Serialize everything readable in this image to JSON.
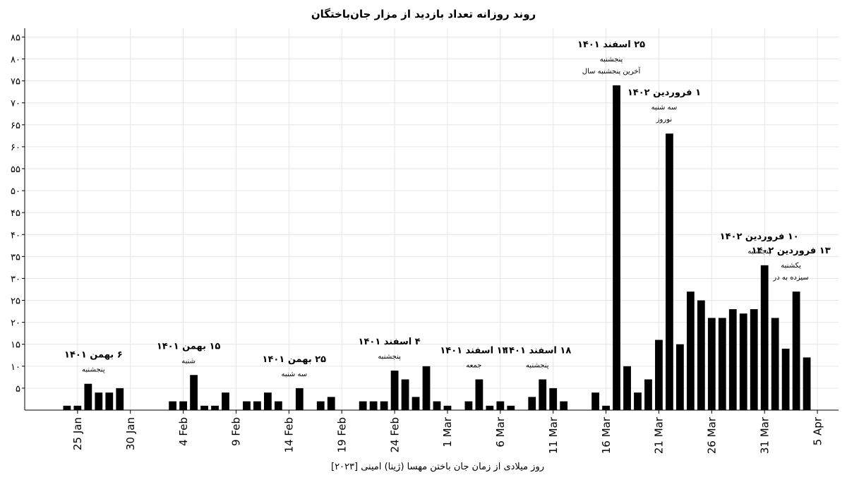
{
  "chart_data": {
    "type": "bar",
    "title": "روند روزانه تعداد بازدید از مزار جان‌باختگان",
    "xlabel": "روز میلادی از زمان جان باختن مهسا (ژینا) امینی [۲۰۲۳]",
    "ylabel": "",
    "ylim": [
      0,
      87
    ],
    "yticks": [
      5,
      10,
      15,
      20,
      25,
      30,
      35,
      40,
      45,
      50,
      55,
      60,
      65,
      70,
      75,
      80,
      85
    ],
    "ytick_labels": [
      "۵",
      "۱۰",
      "۱۵",
      "۲۰",
      "۲۵",
      "۳۰",
      "۳۵",
      "۴۰",
      "۴۵",
      "۵۰",
      "۵۵",
      "۶۰",
      "۶۵",
      "۷۰",
      "۷۵",
      "۸۰",
      "۸۵"
    ],
    "xlim": [
      "2023-01-20",
      "2023-04-07"
    ],
    "x_ticks": [
      {
        "date": "2023-01-25",
        "label": "25 Jan"
      },
      {
        "date": "2023-01-30",
        "label": "30 Jan"
      },
      {
        "date": "2023-02-04",
        "label": "4 Feb"
      },
      {
        "date": "2023-02-09",
        "label": "9 Feb"
      },
      {
        "date": "2023-02-14",
        "label": "14 Feb"
      },
      {
        "date": "2023-02-19",
        "label": "19 Feb"
      },
      {
        "date": "2023-02-24",
        "label": "24 Feb"
      },
      {
        "date": "2023-03-01",
        "label": "1 Mar"
      },
      {
        "date": "2023-03-06",
        "label": "6 Mar"
      },
      {
        "date": "2023-03-11",
        "label": "11 Mar"
      },
      {
        "date": "2023-03-16",
        "label": "16 Mar"
      },
      {
        "date": "2023-03-21",
        "label": "21 Mar"
      },
      {
        "date": "2023-03-26",
        "label": "26 Mar"
      },
      {
        "date": "2023-03-31",
        "label": "31 Mar"
      },
      {
        "date": "2023-04-05",
        "label": "5 Apr"
      }
    ],
    "bars": [
      {
        "x": "2023-01-24",
        "y": 1
      },
      {
        "x": "2023-01-25",
        "y": 1
      },
      {
        "x": "2023-01-26",
        "y": 6
      },
      {
        "x": "2023-01-27",
        "y": 4
      },
      {
        "x": "2023-01-28",
        "y": 4
      },
      {
        "x": "2023-01-29",
        "y": 5
      },
      {
        "x": "2023-02-03",
        "y": 2
      },
      {
        "x": "2023-02-04",
        "y": 2
      },
      {
        "x": "2023-02-05",
        "y": 8
      },
      {
        "x": "2023-02-06",
        "y": 1
      },
      {
        "x": "2023-02-07",
        "y": 1
      },
      {
        "x": "2023-02-08",
        "y": 4
      },
      {
        "x": "2023-02-10",
        "y": 2
      },
      {
        "x": "2023-02-11",
        "y": 2
      },
      {
        "x": "2023-02-12",
        "y": 4
      },
      {
        "x": "2023-02-13",
        "y": 2
      },
      {
        "x": "2023-02-15",
        "y": 5
      },
      {
        "x": "2023-02-17",
        "y": 2
      },
      {
        "x": "2023-02-18",
        "y": 3
      },
      {
        "x": "2023-02-21",
        "y": 2
      },
      {
        "x": "2023-02-22",
        "y": 2
      },
      {
        "x": "2023-02-23",
        "y": 2
      },
      {
        "x": "2023-02-24",
        "y": 9
      },
      {
        "x": "2023-02-25",
        "y": 7
      },
      {
        "x": "2023-02-26",
        "y": 3
      },
      {
        "x": "2023-02-27",
        "y": 10
      },
      {
        "x": "2023-02-28",
        "y": 2
      },
      {
        "x": "2023-03-01",
        "y": 1
      },
      {
        "x": "2023-03-03",
        "y": 2
      },
      {
        "x": "2023-03-04",
        "y": 7
      },
      {
        "x": "2023-03-05",
        "y": 1
      },
      {
        "x": "2023-03-06",
        "y": 2
      },
      {
        "x": "2023-03-07",
        "y": 1
      },
      {
        "x": "2023-03-09",
        "y": 3
      },
      {
        "x": "2023-03-10",
        "y": 7
      },
      {
        "x": "2023-03-11",
        "y": 5
      },
      {
        "x": "2023-03-12",
        "y": 2
      },
      {
        "x": "2023-03-15",
        "y": 4
      },
      {
        "x": "2023-03-16",
        "y": 1
      },
      {
        "x": "2023-03-17",
        "y": 74
      },
      {
        "x": "2023-03-18",
        "y": 10
      },
      {
        "x": "2023-03-19",
        "y": 4
      },
      {
        "x": "2023-03-20",
        "y": 7
      },
      {
        "x": "2023-03-21",
        "y": 16
      },
      {
        "x": "2023-03-22",
        "y": 63
      },
      {
        "x": "2023-03-23",
        "y": 15
      },
      {
        "x": "2023-03-24",
        "y": 27
      },
      {
        "x": "2023-03-25",
        "y": 25
      },
      {
        "x": "2023-03-26",
        "y": 21
      },
      {
        "x": "2023-03-27",
        "y": 21
      },
      {
        "x": "2023-03-28",
        "y": 23
      },
      {
        "x": "2023-03-29",
        "y": 22
      },
      {
        "x": "2023-03-30",
        "y": 23
      },
      {
        "x": "2023-03-31",
        "y": 33
      },
      {
        "x": "2023-04-01",
        "y": 21
      },
      {
        "x": "2023-04-02",
        "y": 14
      },
      {
        "x": "2023-04-03",
        "y": 27
      },
      {
        "x": "2023-04-04",
        "y": 12
      }
    ],
    "annotations": [
      {
        "x": "2023-01-26",
        "y": 6,
        "title": "۶ بهمن ۱۴۰۱",
        "lines": [
          "پنجشنبه"
        ]
      },
      {
        "x": "2023-02-04",
        "y": 8,
        "title": "۱۵ بهمن ۱۴۰۱",
        "lines": [
          "شنبه"
        ]
      },
      {
        "x": "2023-02-14",
        "y": 5,
        "title": "۲۵ بهمن ۱۴۰۱",
        "lines": [
          "سه شنبه"
        ]
      },
      {
        "x": "2023-02-23",
        "y": 9,
        "title": "۴ اسفند ۱۴۰۱",
        "lines": [
          "پنجشنبه"
        ]
      },
      {
        "x": "2023-03-03",
        "y": 7,
        "title": "۱۲ اسفند ۱۴۰۱",
        "lines": [
          "جمعه"
        ]
      },
      {
        "x": "2023-03-09",
        "y": 7,
        "title": "۱۸ اسفند ۱۴۰۱",
        "lines": [
          "پنجشنبه"
        ]
      },
      {
        "x": "2023-03-16",
        "y": 74,
        "title": "۲۵ اسفند ۱۴۰۱",
        "lines": [
          "پنجشنبه",
          "آخرین پنجشنبه سال"
        ]
      },
      {
        "x": "2023-03-21",
        "y": 63,
        "title": "۱ فروردین ۱۴۰۲",
        "lines": [
          "سه شنبه",
          "نوروز"
        ]
      },
      {
        "x": "2023-03-30",
        "y": 33,
        "title": "۱۰ فروردین ۱۴۰۲",
        "lines": [
          "پنجشنبه"
        ]
      },
      {
        "x": "2023-04-02",
        "y": 27,
        "title": "۱۳ فروردین ۱۴۰۲",
        "lines": [
          "یکشنبه",
          "سیزده به در"
        ]
      }
    ],
    "grid": true,
    "legend": "none",
    "bar_color": "#000000",
    "grid_color": "#e6e6e6"
  }
}
